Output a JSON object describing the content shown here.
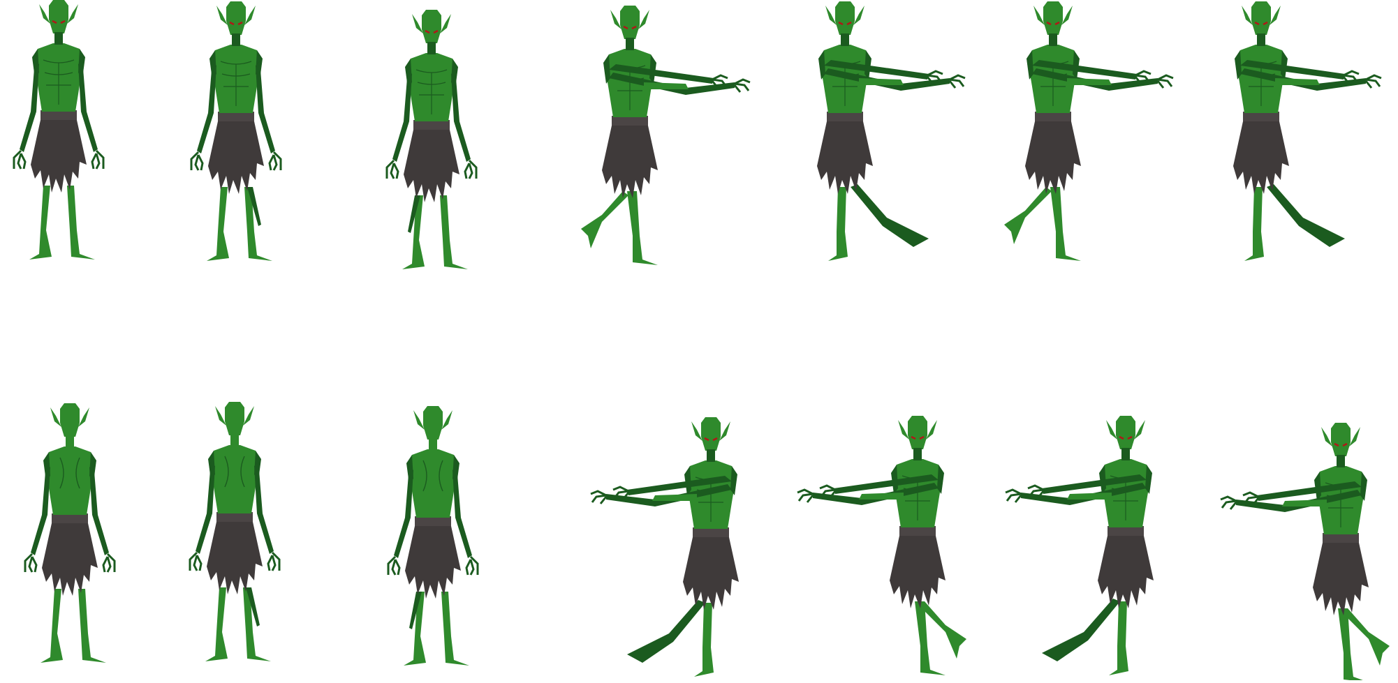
{
  "sprite_sheet": {
    "background": "#ffffff",
    "colors": {
      "skin": "#2f8a2c",
      "skin_dark": "#1b5b1f",
      "skin_mid": "#257426",
      "skirt": "#3f3a3a",
      "skirt_light": "#4b4545",
      "eyes": "#b01818"
    },
    "rows": [
      {
        "name": "front-row",
        "frames": [
          {
            "pose": "idle",
            "view": "front",
            "facing": "right",
            "step": "neutral"
          },
          {
            "pose": "idle",
            "view": "front",
            "facing": "right",
            "step": "right-leg-back"
          },
          {
            "pose": "idle",
            "view": "front",
            "facing": "right",
            "step": "left-leg-back"
          },
          {
            "pose": "walk",
            "view": "front",
            "facing": "right",
            "step": "left-leg-back"
          },
          {
            "pose": "walk",
            "view": "front",
            "facing": "right",
            "step": "right-leg-forward"
          },
          {
            "pose": "walk",
            "view": "front",
            "facing": "right",
            "step": "left-leg-back"
          },
          {
            "pose": "walk",
            "view": "front",
            "facing": "right",
            "step": "right-leg-forward"
          }
        ]
      },
      {
        "name": "back-row",
        "frames": [
          {
            "pose": "idle",
            "view": "back",
            "facing": "left",
            "step": "neutral"
          },
          {
            "pose": "idle",
            "view": "back",
            "facing": "left",
            "step": "right-leg-back"
          },
          {
            "pose": "idle",
            "view": "back",
            "facing": "left",
            "step": "left-leg-back"
          },
          {
            "pose": "walk",
            "view": "front",
            "facing": "left",
            "step": "left-leg-forward"
          },
          {
            "pose": "walk",
            "view": "front",
            "facing": "left",
            "step": "right-leg-back"
          },
          {
            "pose": "walk",
            "view": "front",
            "facing": "left",
            "step": "left-leg-forward"
          },
          {
            "pose": "walk",
            "view": "front",
            "facing": "left",
            "step": "right-leg-back"
          }
        ]
      }
    ]
  }
}
